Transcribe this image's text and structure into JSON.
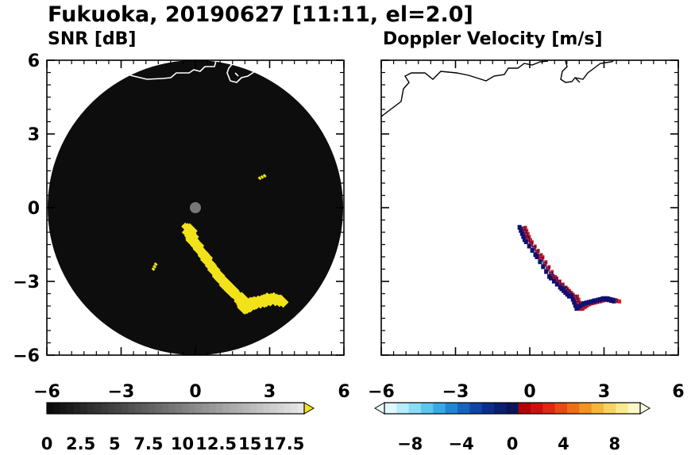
{
  "title": "Fukuoka, 20190627 [11:11, el=2.0]",
  "colors": {
    "snr_background": "#0d0d0d",
    "echo_yellow": "#f2e21a",
    "receding": "#d81f1f",
    "approaching": "#101070",
    "coastline_on_dark": "#ffffff",
    "coastline_on_light": "#000000"
  },
  "chart_data": [
    {
      "type": "heatmap",
      "title": "SNR [dB]",
      "xlim": [
        -6,
        6
      ],
      "ylim": [
        -6,
        6
      ],
      "xticks": [
        "−6",
        "−3",
        "0",
        "3",
        "6"
      ],
      "yticks": [
        "6",
        "3",
        "0",
        "−3",
        "−6"
      ],
      "range_km": 6,
      "colorbar": {
        "min": 0,
        "max": 19,
        "step": 0.5,
        "extend": "max",
        "tick_labels": [
          "0",
          "2.5",
          "5",
          "7.5",
          "10",
          "12.5",
          "15",
          "17.5"
        ],
        "tick_values": [
          0,
          2.5,
          5,
          7.5,
          10,
          12.5,
          15,
          17.5
        ]
      },
      "echoes": [
        {
          "path": [
            [
              -0.3,
              -0.8
            ],
            [
              -0.1,
              -1.3
            ],
            [
              0.4,
              -2.0
            ],
            [
              0.9,
              -2.8
            ],
            [
              1.4,
              -3.3
            ],
            [
              1.7,
              -3.6
            ]
          ],
          "label": "main-band"
        },
        {
          "path": [
            [
              1.8,
              -3.6
            ],
            [
              2.0,
              -4.1
            ],
            [
              2.3,
              -3.9
            ],
            [
              2.7,
              -3.8
            ],
            [
              3.1,
              -3.7
            ],
            [
              3.5,
              -3.8
            ]
          ],
          "label": "cluster"
        },
        {
          "path": [
            [
              -1.7,
              -2.5
            ],
            [
              -1.6,
              -2.3
            ]
          ],
          "label": "small-1"
        },
        {
          "path": [
            [
              2.6,
              1.2
            ],
            [
              2.8,
              1.3
            ]
          ],
          "label": "small-2"
        }
      ]
    },
    {
      "type": "heatmap",
      "title": "Doppler Velocity [m/s]",
      "xlim": [
        -6,
        6
      ],
      "ylim": [
        -6,
        6
      ],
      "xticks": [
        "−6",
        "−3",
        "0",
        "3",
        "6"
      ],
      "yticks": [],
      "colorbar": {
        "min": -10,
        "max": 10,
        "extend": "both",
        "tick_labels": [
          "−8",
          "−4",
          "0",
          "4",
          "8"
        ],
        "tick_values": [
          -8,
          -4,
          0,
          4,
          8
        ]
      }
    }
  ]
}
